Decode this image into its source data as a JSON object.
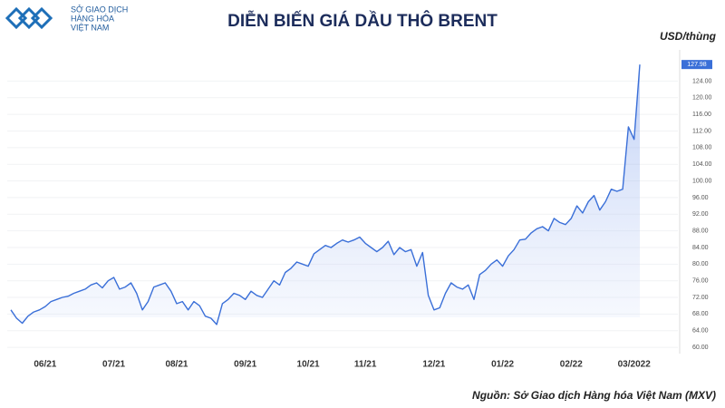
{
  "header": {
    "logo_lines": [
      "SỞ GIAO DỊCH",
      "HÀNG HÓA",
      "VIỆT NAM"
    ]
  },
  "chart_data": {
    "type": "area",
    "title": "DIỄN BIẾN GIÁ DẦU THÔ BRENT",
    "y_label": "USD/thùng",
    "source": "Nguồn: Sở Giao dịch Hàng hóa Việt Nam (MXV)",
    "grid": true,
    "ylim": [
      58.5,
      131.5
    ],
    "yticks": [
      {
        "value": 60,
        "label": "60.00"
      },
      {
        "value": 64,
        "label": "64.00"
      },
      {
        "value": 68,
        "label": "68.00"
      },
      {
        "value": 72,
        "label": "72.00"
      },
      {
        "value": 76,
        "label": "76.00"
      },
      {
        "value": 80,
        "label": "80.00"
      },
      {
        "value": 84,
        "label": "84.00"
      },
      {
        "value": 88,
        "label": "88.00"
      },
      {
        "value": 92,
        "label": "92.00"
      },
      {
        "value": 96,
        "label": "96.00"
      },
      {
        "value": 100,
        "label": "100.00"
      },
      {
        "value": 104,
        "label": "104.00"
      },
      {
        "value": 108,
        "label": "108.00"
      },
      {
        "value": 112,
        "label": "112.00"
      },
      {
        "value": 116,
        "label": "116.00"
      },
      {
        "value": 120,
        "label": "120.00"
      },
      {
        "value": 124,
        "label": "124.00"
      }
    ],
    "categories": [
      null,
      null,
      null,
      null,
      null,
      null,
      "06/21",
      null,
      null,
      null,
      null,
      null,
      null,
      null,
      null,
      null,
      null,
      null,
      "07/21",
      null,
      null,
      null,
      null,
      null,
      null,
      null,
      null,
      null,
      null,
      "08/21",
      null,
      null,
      null,
      null,
      null,
      null,
      null,
      null,
      null,
      null,
      null,
      "09/21",
      null,
      null,
      null,
      null,
      null,
      null,
      null,
      null,
      null,
      null,
      "10/21",
      null,
      null,
      null,
      null,
      null,
      null,
      null,
      null,
      null,
      "11/21",
      null,
      null,
      null,
      null,
      null,
      null,
      null,
      null,
      null,
      null,
      null,
      "12/21",
      null,
      null,
      null,
      null,
      null,
      null,
      null,
      null,
      null,
      null,
      null,
      "01/22",
      null,
      null,
      null,
      null,
      null,
      null,
      null,
      null,
      null,
      null,
      null,
      "02/22",
      null,
      null,
      null,
      null,
      null,
      null,
      null,
      null,
      null,
      null,
      "03/2022",
      null
    ],
    "series": [
      {
        "name": "Brent",
        "color": "#3a6fd8",
        "values": [
          69,
          67,
          65.8,
          67.5,
          68.5,
          69,
          69.8,
          71,
          71.5,
          72,
          72.3,
          73,
          73.5,
          74,
          75,
          75.5,
          74.3,
          76,
          76.8,
          74,
          74.5,
          75.5,
          73,
          69,
          71,
          74.5,
          75,
          75.5,
          73.5,
          70.5,
          71,
          69,
          71,
          70,
          67.5,
          67,
          65.5,
          70.5,
          71.5,
          73,
          72.5,
          71.5,
          73.5,
          72.5,
          72,
          74,
          76,
          75,
          78,
          79,
          80.5,
          80,
          79.5,
          82.5,
          83.5,
          84.5,
          84,
          85,
          85.8,
          85.3,
          85.8,
          86.5,
          85,
          84,
          83,
          84,
          85.5,
          82.3,
          84,
          83,
          83.5,
          79.5,
          82.8,
          72.5,
          69,
          69.5,
          73,
          75.5,
          74.5,
          74,
          75,
          71.5,
          77.5,
          78.5,
          80,
          81,
          79.5,
          82,
          83.5,
          85.8,
          86,
          87.5,
          88.5,
          89,
          88,
          91,
          90,
          89.5,
          91,
          94,
          92.3,
          95,
          96.5,
          93,
          95,
          98,
          97.5,
          98,
          113,
          110,
          127.98
        ]
      }
    ]
  }
}
